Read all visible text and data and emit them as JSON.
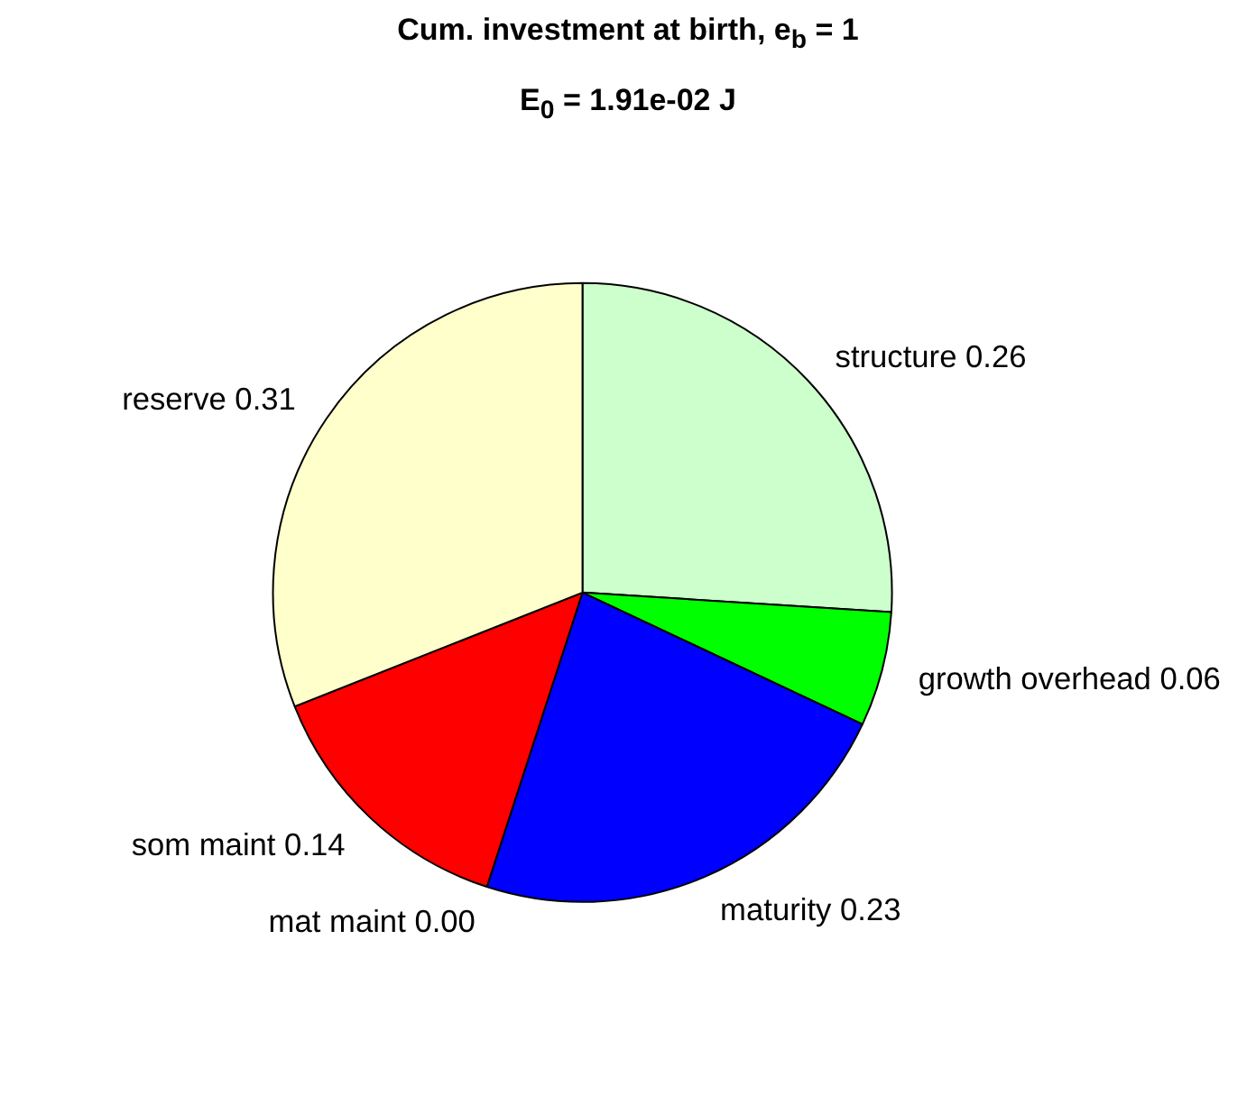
{
  "chart_data": {
    "type": "pie",
    "title": "Cum. investment at birth, e$_{b}$ = 1",
    "subtitle": "E$_{0}$ = 1.91e-02 J",
    "categories": [
      "structure",
      "growth overhead",
      "maturity",
      "mat maint",
      "som maint",
      "reserve"
    ],
    "values": [
      0.26,
      0.06,
      0.23,
      0.0,
      0.14,
      0.31
    ],
    "value_labels": [
      "0.26",
      "0.06",
      "0.23",
      "0.00",
      "0.14",
      "0.31"
    ],
    "colors": [
      "#ccffcc",
      "#00ff00",
      "#0000ff",
      "#ff00ff",
      "#ff0000",
      "#ffffcc"
    ]
  }
}
